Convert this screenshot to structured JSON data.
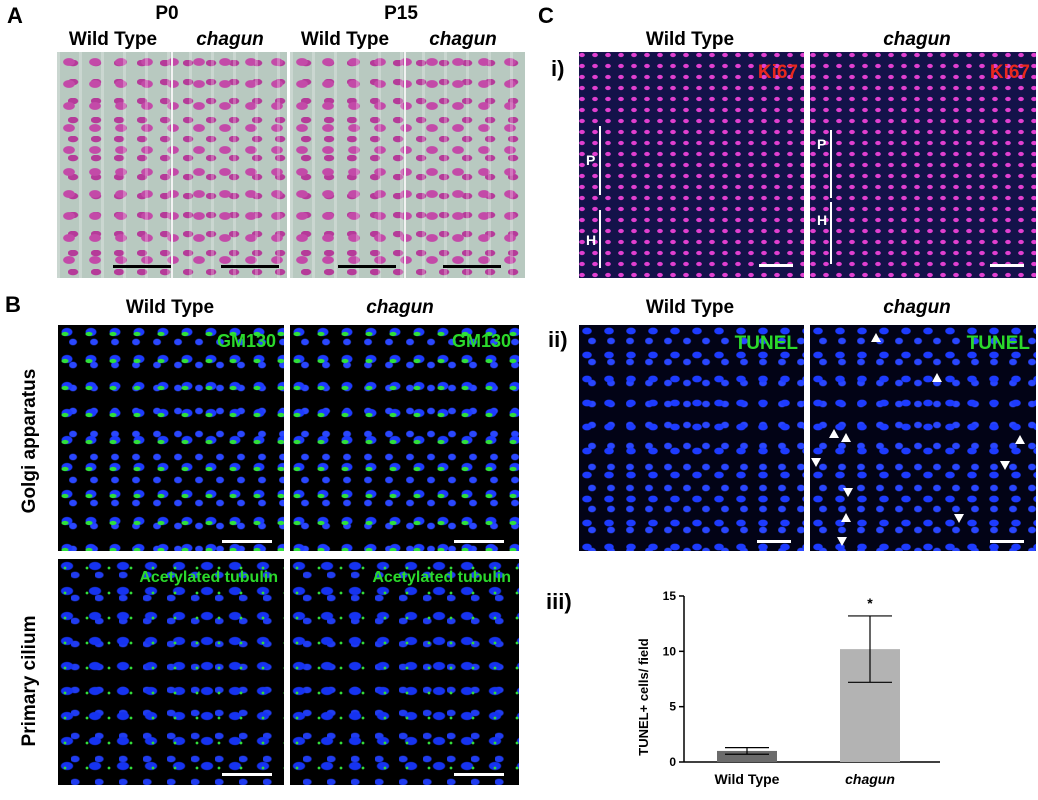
{
  "panel_letters": {
    "a": "A",
    "b": "B",
    "c": "C"
  },
  "panel_a": {
    "groups": [
      "P0",
      "P15"
    ],
    "wild_type": "Wild Type",
    "mutant": "chagun"
  },
  "panel_b": {
    "wild_type": "Wild Type",
    "mutant": "chagun",
    "row_labels": [
      "Golgi apparatus",
      "Primary cilium"
    ],
    "stain_golgi": "GM130",
    "stain_cilium": "Acetylated tubulin"
  },
  "panel_c": {
    "sub_i": "i)",
    "sub_ii": "ii)",
    "sub_iii": "iii)",
    "wild_type": "Wild Type",
    "mutant": "chagun",
    "stain_ki67": "Ki67",
    "stain_tunel": "TUNEL",
    "zone_p": "P",
    "zone_h": "H"
  },
  "colors": {
    "ki67": "#e8281e",
    "green_label": "#2bd92b",
    "bar_wt": "#6b6b6b",
    "bar_mut": "#b3b3b3"
  },
  "chart_data": {
    "type": "bar",
    "categories": [
      "Wild Type",
      "chagun"
    ],
    "values": [
      1.0,
      10.2
    ],
    "error": [
      0.3,
      3.0
    ],
    "ylabel": "TUNEL+ cells/ field",
    "yticks": [
      0,
      5,
      10,
      15
    ],
    "ylim": [
      0,
      15
    ],
    "significance": "*"
  }
}
